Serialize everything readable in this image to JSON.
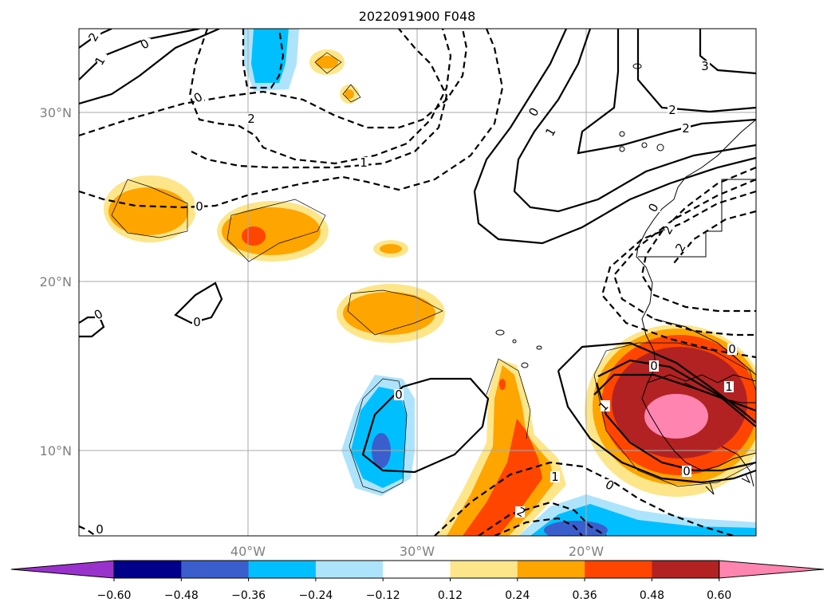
{
  "title": "2022091900 F048",
  "lat_labels": [
    "30°N",
    "20°N",
    "10°N"
  ],
  "lon_labels": [
    "40°W",
    "30°W",
    "20°W"
  ],
  "colorbar": {
    "ticks": [
      "−0.60",
      "−0.48",
      "−0.36",
      "−0.24",
      "−0.12",
      "0.12",
      "0.24",
      "0.36",
      "0.48",
      "0.60"
    ],
    "colors": [
      "#9932cc",
      "#00008b",
      "#3a5fcd",
      "#00bfff",
      "#aee4fb",
      "#ffffff",
      "#fde68a",
      "#ffa500",
      "#ff4500",
      "#b22222",
      "#ff85b0"
    ],
    "extend": "both"
  },
  "contour_labels": [
    "2",
    "0",
    "1",
    "0",
    "2",
    "1",
    "0",
    "0",
    "0",
    "0",
    "1",
    "0",
    "3",
    "2",
    "2",
    "0",
    "2",
    "2",
    "0",
    "0",
    "1",
    "1",
    "0",
    "0",
    "1",
    "2",
    "0"
  ],
  "colors": {
    "orange": "#ffa500",
    "red_orange": "#ff4500",
    "dark_red": "#b22222",
    "pink": "#ff85b0",
    "light_yellow": "#fde68a",
    "deep_sky": "#00bfff",
    "light_blue": "#aee4fb",
    "royal_blue": "#3a5fcd"
  }
}
